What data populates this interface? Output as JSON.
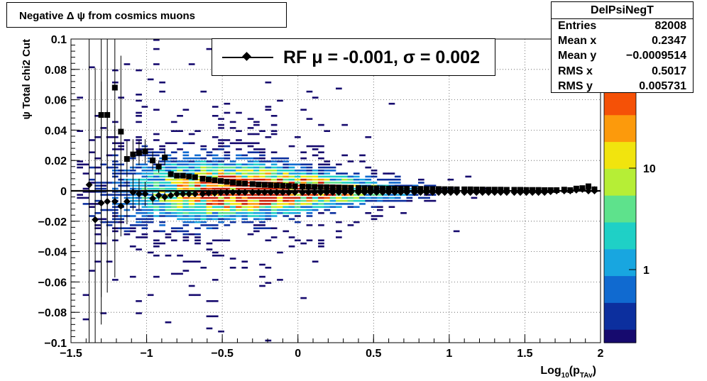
{
  "title": "Negative Δ ψ from cosmics muons",
  "legend": {
    "label": "RF μ = -0.001, σ =   0.002"
  },
  "stats": {
    "name": "DelPsiNegT",
    "rows": [
      {
        "key": "Entries",
        "value": "82008"
      },
      {
        "key": "Mean x",
        "value": "0.2347"
      },
      {
        "key": "Mean y",
        "value": "−0.0009514"
      },
      {
        "key": "RMS x",
        "value": "0.5017"
      },
      {
        "key": "RMS y",
        "value": "0.005731"
      }
    ]
  },
  "chart_data": {
    "type": "heatmap",
    "title": "Negative Δ ψ from cosmics muons",
    "xlabel": "Log10(pTAv)",
    "ylabel": "ψ  Total chi2 Cut",
    "xlim": [
      -1.5,
      2
    ],
    "ylim": [
      -0.1,
      0.1
    ],
    "x_ticks": [
      "−1.5",
      "−1",
      "−0.5",
      "0",
      "0.5",
      "1",
      "1.5",
      "2"
    ],
    "y_ticks": [
      "−0.1",
      "−0.08",
      "−0.06",
      "−0.04",
      "−0.02",
      "0",
      "0.02",
      "0.04",
      "0.06",
      "0.08",
      "0.1"
    ],
    "grid": true,
    "z_scale": "log",
    "z_ticks": [
      "1",
      "10"
    ],
    "palette": [
      "#160a6e",
      "#0c2f9e",
      "#106ad0",
      "#18a6e0",
      "#1fd0c6",
      "#5ee28c",
      "#b6ee36",
      "#f1e40e",
      "#fc9a0c",
      "#f55107",
      "#cc1f05"
    ],
    "density_model": {
      "y_center": 0.0,
      "y_width_at_low_x": 0.022,
      "y_width_at_high_x": 0.002,
      "x_peak": -0.2
    },
    "fit_line": {
      "name": "RF",
      "y": 0.0,
      "mu": -0.001,
      "sigma": 0.002
    },
    "series": [
      {
        "name": "mean",
        "marker": "square",
        "x": [
          -1.3,
          -1.26,
          -1.21,
          -1.17,
          -1.13,
          -1.09,
          -1.05,
          -1.01,
          -0.96,
          -0.92,
          -0.88,
          -0.84,
          -0.8,
          -0.76,
          -0.72,
          -0.68,
          -0.63,
          -0.59,
          -0.55,
          -0.51,
          -0.47,
          -0.43,
          -0.39,
          -0.35,
          -0.3,
          -0.26,
          -0.22,
          -0.18,
          -0.14,
          -0.1,
          -0.06,
          -0.02,
          0.03,
          0.07,
          0.11,
          0.15,
          0.19,
          0.23,
          0.27,
          0.31,
          0.35,
          0.4,
          0.44,
          0.48,
          0.52,
          0.56,
          0.6,
          0.64,
          0.68,
          0.72,
          0.77,
          0.81,
          0.85,
          0.89,
          0.93,
          0.97,
          1.01,
          1.05,
          1.1,
          1.14,
          1.18,
          1.22,
          1.26,
          1.3,
          1.34,
          1.38,
          1.43,
          1.47,
          1.51,
          1.55,
          1.59,
          1.63,
          1.67,
          1.71,
          1.76,
          1.8,
          1.84,
          1.88,
          1.92,
          1.96
        ],
        "y": [
          0.05,
          0.05,
          0.068,
          0.039,
          0.021,
          0.024,
          0.025,
          0.026,
          0.02,
          0.016,
          0.022,
          0.011,
          0.01,
          0.01,
          0.0095,
          0.009,
          0.008,
          0.0075,
          0.007,
          0.0065,
          0.006,
          0.0055,
          0.005,
          0.0048,
          0.0045,
          0.0042,
          0.004,
          0.0038,
          0.0036,
          0.0034,
          0.0032,
          0.003,
          0.0028,
          0.0027,
          0.0026,
          0.0025,
          0.0024,
          0.0023,
          0.0022,
          0.0021,
          0.002,
          0.0019,
          0.0018,
          0.0017,
          0.0017,
          0.0016,
          0.0015,
          0.0015,
          0.0014,
          0.0014,
          0.0013,
          0.0013,
          0.0012,
          0.0012,
          0.0012,
          0.0011,
          0.0011,
          0.001,
          0.001,
          0.001,
          0.0009,
          0.0009,
          0.0008,
          0.0008,
          0.0008,
          0.0007,
          0.0007,
          0.0007,
          0.0006,
          0.0006,
          0.0006,
          0.0005,
          0.0005,
          0.0005,
          0.0008,
          0.0005,
          0.0015,
          0.0018,
          0.003,
          0.001
        ],
        "yerr": [
          0.12,
          0.08,
          0.06,
          0.05,
          0.012,
          0.01,
          0.008,
          0.008,
          0.006,
          0.004,
          0.005,
          0.002,
          0.0015,
          0.0012,
          0.001,
          0.001,
          0.0008,
          0.0008,
          0.0007,
          0.0006,
          0.0005,
          0.0005,
          0.0004,
          0.0004,
          0.0003,
          0.0003,
          0.0003,
          0.0003,
          0.0003,
          0.0003,
          0.0003,
          0.0003,
          0.0003,
          0.0003,
          0.0003,
          0.0003,
          0.0003,
          0.0003,
          0.0003,
          0.0003,
          0.0003,
          0.0003,
          0.0003,
          0.0003,
          0.0003,
          0.0003,
          0.0003,
          0.0003,
          0.0003,
          0.0003,
          0.0003,
          0.0003,
          0.0003,
          0.0003,
          0.0003,
          0.0003,
          0.0003,
          0.0003,
          0.0003,
          0.0003,
          0.0003,
          0.0003,
          0.0003,
          0.0003,
          0.0003,
          0.0003,
          0.0003,
          0.0003,
          0.0003,
          0.0003,
          0.0003,
          0.0003,
          0.0004,
          0.0004,
          0.0005,
          0.0005,
          0.0008,
          0.001,
          0.0015,
          0.002
        ]
      },
      {
        "name": "RF",
        "marker": "diamond",
        "x": [
          -1.38,
          -1.34,
          -1.3,
          -1.26,
          -1.21,
          -1.17,
          -1.13,
          -1.09,
          -1.05,
          -1.01,
          -0.96,
          -0.92,
          -0.88,
          -0.84,
          -0.8,
          -0.76,
          -0.72,
          -0.68,
          -0.63,
          -0.59,
          -0.55,
          -0.51,
          -0.47,
          -0.43,
          -0.39,
          -0.35,
          -0.3,
          -0.26,
          -0.22,
          -0.18,
          -0.14,
          -0.1,
          -0.06,
          -0.02,
          0.03,
          0.07,
          0.11,
          0.15,
          0.19,
          0.23,
          0.27,
          0.31,
          0.35,
          0.4,
          0.44,
          0.48,
          0.52,
          0.56,
          0.6,
          0.64,
          0.68,
          0.72,
          0.77,
          0.81,
          0.85,
          0.89,
          0.93,
          0.97,
          1.01,
          1.05,
          1.1,
          1.14,
          1.18,
          1.22,
          1.26,
          1.3,
          1.34,
          1.38,
          1.43,
          1.47,
          1.51,
          1.55,
          1.59,
          1.63,
          1.67,
          1.71,
          1.76,
          1.8,
          1.84,
          1.88,
          1.92,
          1.96
        ],
        "y": [
          0.004,
          -0.019,
          -0.008,
          -0.007,
          -0.007,
          -0.01,
          -0.007,
          -0.001,
          -0.002,
          -0.002,
          -0.005,
          -0.003,
          -0.004,
          -0.003,
          -0.002,
          -0.002,
          -0.002,
          -0.002,
          -0.002,
          -0.0015,
          -0.0015,
          -0.0012,
          -0.001,
          -0.001,
          -0.001,
          -0.001,
          -0.001,
          -0.001,
          -0.001,
          -0.001,
          -0.001,
          -0.001,
          -0.001,
          -0.001,
          -0.001,
          -0.001,
          -0.001,
          -0.001,
          -0.001,
          -0.001,
          -0.001,
          -0.001,
          -0.001,
          -0.001,
          -0.001,
          -0.001,
          -0.001,
          -0.001,
          -0.001,
          -0.001,
          -0.001,
          -0.001,
          -0.001,
          -0.001,
          -0.001,
          -0.001,
          -0.001,
          -0.001,
          -0.001,
          -0.001,
          -0.001,
          -0.001,
          -0.001,
          -0.001,
          -0.001,
          -0.001,
          -0.001,
          -0.001,
          -0.001,
          -0.001,
          -0.001,
          -0.001,
          -0.001,
          -0.001,
          -0.0005,
          0.0,
          0.0,
          0.0,
          0.0005,
          0.001,
          0.0,
          0.0
        ],
        "yerr": [
          0.2,
          0.1,
          0.08,
          0.06,
          0.05,
          0.02,
          0.015,
          0.012,
          0.01,
          0.008,
          0.004,
          0.003,
          0.003,
          0.002,
          0.002,
          0.0015,
          0.0015,
          0.001,
          0.001,
          0.001,
          0.0008,
          0.0008,
          0.0006,
          0.0006,
          0.0005,
          0.0005,
          0.0004,
          0.0004,
          0.0004,
          0.0004,
          0.0004,
          0.0004,
          0.0004,
          0.0004,
          0.0004,
          0.0004,
          0.0004,
          0.0004,
          0.0004,
          0.0004,
          0.0004,
          0.0004,
          0.0004,
          0.0004,
          0.0004,
          0.0004,
          0.0004,
          0.0004,
          0.0004,
          0.0004,
          0.0004,
          0.0004,
          0.0004,
          0.0004,
          0.0004,
          0.0004,
          0.0004,
          0.0004,
          0.0004,
          0.0004,
          0.0004,
          0.0004,
          0.0004,
          0.0004,
          0.0004,
          0.0004,
          0.0004,
          0.0004,
          0.0004,
          0.0004,
          0.0004,
          0.0004,
          0.0004,
          0.0004,
          0.0005,
          0.0005,
          0.0006,
          0.0008,
          0.001,
          0.0015,
          0.002,
          0.002
        ]
      }
    ]
  }
}
